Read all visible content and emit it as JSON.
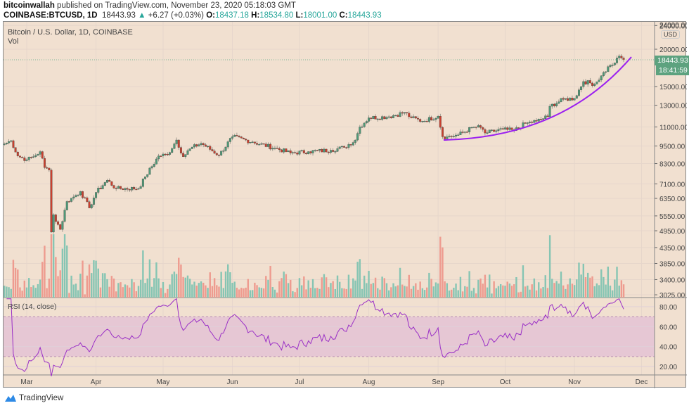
{
  "header": {
    "author": "bitcoinwallah",
    "published": "published on TradingView.com, November 23, 2020 05:18:03 GMT",
    "symbol": "COINBASE:BTCUSD, 1D",
    "last": "18443.93",
    "change": "+6.27 (+0.03%)",
    "o_label": "O:",
    "o": "18437.18",
    "h_label": "H:",
    "h": "18534.80",
    "l_label": "L:",
    "l": "18001.00",
    "c_label": "C:",
    "c": "18443.93"
  },
  "pane": {
    "title": "Bitcoin / U.S. Dollar, 1D, COINBASE",
    "vol_label": "Vol",
    "rsi_label": "RSI (14, close)",
    "currency": "USD"
  },
  "last_price_tag": "18443.93",
  "countdown_tag": "18:41:59",
  "footer": {
    "brand": "TradingView"
  },
  "colors": {
    "background": "#f1e0d0",
    "up": "#4f9a78",
    "down": "#c9402f",
    "vol_up": "#86c5b3",
    "vol_down": "#ee9b8f",
    "rsi": "#9a2fc6",
    "rsi_band": "#e6c7d4",
    "trendline": "#9b1ff0"
  },
  "chart_data": {
    "type": "candlestick",
    "scale": "log",
    "grid": true,
    "price_ticks": [
      "24000.00",
      "20000.00",
      "15000.00",
      "13000.00",
      "11000.00",
      "9500.00",
      "8300.00",
      "7100.00",
      "6350.00",
      "5550.00",
      "4950.00",
      "4350.00",
      "3850.00",
      "3400.00",
      "3025.00"
    ],
    "rsi_ticks": [
      "80.00",
      "60.00",
      "40.00",
      "20.00"
    ],
    "rsi_band": [
      30,
      70
    ],
    "x_ticks": [
      "Mar",
      "Apr",
      "May",
      "Jun",
      "Jul",
      "Aug",
      "Sep",
      "Oct",
      "Nov",
      "Dec"
    ],
    "closes": [
      [
        "2020-02-20",
        9650
      ],
      [
        "2020-02-23",
        9900
      ],
      [
        "2020-02-26",
        8800
      ],
      [
        "2020-03-01",
        8550
      ],
      [
        "2020-03-04",
        8750
      ],
      [
        "2020-03-07",
        9100
      ],
      [
        "2020-03-09",
        8050
      ],
      [
        "2020-03-11",
        7900
      ],
      [
        "2020-03-12",
        4900
      ],
      [
        "2020-03-13",
        5600
      ],
      [
        "2020-03-16",
        5000
      ],
      [
        "2020-03-19",
        6200
      ],
      [
        "2020-03-23",
        6500
      ],
      [
        "2020-03-25",
        6700
      ],
      [
        "2020-03-29",
        5900
      ],
      [
        "2020-04-01",
        6650
      ],
      [
        "2020-04-06",
        7300
      ],
      [
        "2020-04-10",
        6850
      ],
      [
        "2020-04-20",
        6850
      ],
      [
        "2020-04-23",
        7500
      ],
      [
        "2020-04-29",
        8800
      ],
      [
        "2020-05-03",
        8900
      ],
      [
        "2020-05-07",
        9950
      ],
      [
        "2020-05-10",
        8750
      ],
      [
        "2020-05-13",
        9300
      ],
      [
        "2020-05-18",
        9700
      ],
      [
        "2020-05-26",
        8850
      ],
      [
        "2020-06-01",
        10200
      ],
      [
        "2020-06-10",
        9800
      ],
      [
        "2020-06-20",
        9350
      ],
      [
        "2020-06-27",
        9000
      ],
      [
        "2020-07-05",
        9100
      ],
      [
        "2020-07-15",
        9200
      ],
      [
        "2020-07-21",
        9400
      ],
      [
        "2020-07-26",
        9950
      ],
      [
        "2020-07-28",
        11000
      ],
      [
        "2020-08-01",
        11800
      ],
      [
        "2020-08-10",
        11900
      ],
      [
        "2020-08-17",
        12300
      ],
      [
        "2020-08-20",
        11800
      ],
      [
        "2020-08-25",
        11500
      ],
      [
        "2020-09-01",
        11950
      ],
      [
        "2020-09-03",
        10200
      ],
      [
        "2020-09-05",
        10200
      ],
      [
        "2020-09-10",
        10350
      ],
      [
        "2020-09-17",
        11000
      ],
      [
        "2020-09-20",
        10950
      ],
      [
        "2020-09-22",
        10500
      ],
      [
        "2020-09-30",
        10800
      ],
      [
        "2020-10-05",
        10700
      ],
      [
        "2020-10-10",
        11300
      ],
      [
        "2020-10-15",
        11500
      ],
      [
        "2020-10-20",
        11900
      ],
      [
        "2020-10-21",
        12900
      ],
      [
        "2020-10-27",
        13600
      ],
      [
        "2020-11-01",
        13700
      ],
      [
        "2020-11-05",
        15600
      ],
      [
        "2020-11-10",
        15300
      ],
      [
        "2020-11-13",
        16300
      ],
      [
        "2020-11-17",
        17700
      ],
      [
        "2020-11-19",
        18000
      ],
      [
        "2020-11-20",
        18700
      ],
      [
        "2020-11-22",
        18700
      ],
      [
        "2020-11-23",
        18443.93
      ]
    ]
  }
}
